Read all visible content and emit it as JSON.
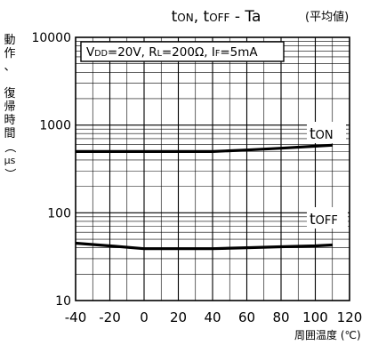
{
  "chart_data": {
    "type": "line",
    "title": "tON, tOFF - Ta",
    "title_parts": {
      "a": "t",
      "a_sub": "ON",
      "sep": ", ",
      "b": "t",
      "b_sub": "OFF",
      "tail": " - Ta"
    },
    "subtitle": "(平均値)",
    "ylabel_chars": [
      "動",
      "作",
      "、",
      "",
      "復",
      "帰",
      "時",
      "間",
      "（",
      "μs",
      "）"
    ],
    "xlabel": "周囲温度 (℃)",
    "condition_parts": [
      {
        "t": "V"
      },
      {
        "t": "DD",
        "sub": true
      },
      {
        "t": "=20V, R"
      },
      {
        "t": "L",
        "sub": true
      },
      {
        "t": "=200Ω, I"
      },
      {
        "t": "F",
        "sub": true
      },
      {
        "t": "=5mA"
      }
    ],
    "x_ticks": [
      "-40",
      "-20",
      "0",
      "20",
      "40",
      "60",
      "80",
      "100",
      "120"
    ],
    "y_ticks": [
      "10",
      "100",
      "1000",
      "10000"
    ],
    "xlim": [
      -40,
      120
    ],
    "ylim": [
      10,
      10000
    ],
    "y_scale": "log",
    "grid": true,
    "series": [
      {
        "name": "tON",
        "label_main": "t",
        "label_sub": "ON",
        "x": [
          -40,
          -20,
          0,
          20,
          40,
          60,
          80,
          100,
          110
        ],
        "y": [
          500,
          500,
          500,
          500,
          500,
          520,
          545,
          575,
          590
        ]
      },
      {
        "name": "tOFF",
        "label_main": "t",
        "label_sub": "OFF",
        "x": [
          -40,
          -20,
          0,
          20,
          40,
          60,
          80,
          100,
          110
        ],
        "y": [
          45,
          42,
          39,
          39,
          39,
          40,
          41,
          42,
          43
        ]
      }
    ]
  }
}
